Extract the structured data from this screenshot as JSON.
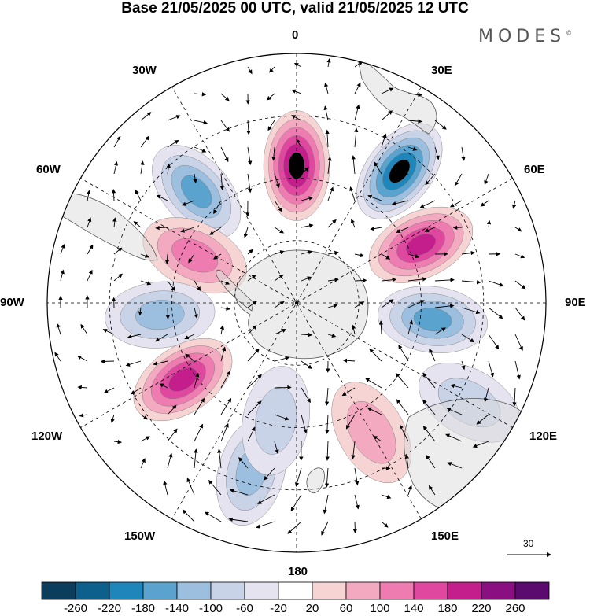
{
  "title": "Base 21/05/2025 00 UTC, valid 21/05/2025 12 UTC",
  "brand": "MODES",
  "brand_mark": "©",
  "longitude_labels": {
    "lon_0": "0",
    "lon_30e": "30E",
    "lon_60e": "60E",
    "lon_90e": "90E",
    "lon_120e": "120E",
    "lon_150e": "150E",
    "lon_180": "180",
    "lon_150w": "150W",
    "lon_120w": "120W",
    "lon_90w": "90W",
    "lon_60w": "60W",
    "lon_30w": "30W"
  },
  "reference_vector": {
    "label": "30"
  },
  "colorbar": {
    "ticks": [
      "-260",
      "-220",
      "-180",
      "-140",
      "-100",
      "-60",
      "-20",
      "20",
      "60",
      "100",
      "140",
      "180",
      "220",
      "260"
    ],
    "colors": [
      "#0b3d5c",
      "#0d5f8c",
      "#1f86bb",
      "#5aa3cf",
      "#9cbfe0",
      "#c9d3e8",
      "#e5e3ef",
      "#ffffff",
      "#f7d4d4",
      "#f3aac0",
      "#ee7cb0",
      "#e0479f",
      "#c41d8c",
      "#8a0f80",
      "#5b0a6e"
    ]
  },
  "anomaly_features": [
    {
      "sign": "positive",
      "lon": 0,
      "colat": 0.55,
      "level": 5
    },
    {
      "sign": "negative",
      "lon": 38,
      "colat": 0.67,
      "level": 5
    },
    {
      "sign": "positive",
      "lon": 65,
      "colat": 0.55,
      "level": 4
    },
    {
      "sign": "negative",
      "lon": 97,
      "colat": 0.55,
      "level": 3
    },
    {
      "sign": "negative",
      "lon": -42,
      "colat": 0.6,
      "level": 3
    },
    {
      "sign": "positive",
      "lon": -65,
      "colat": 0.45,
      "level": 2
    },
    {
      "sign": "negative",
      "lon": -95,
      "colat": 0.55,
      "level": 2
    },
    {
      "sign": "positive",
      "lon": -124,
      "colat": 0.55,
      "level": 4
    },
    {
      "sign": "negative",
      "lon": -165,
      "colat": 0.7,
      "level": 2
    },
    {
      "sign": "negative",
      "lon": -170,
      "colat": 0.48,
      "level": 1
    },
    {
      "sign": "positive",
      "lon": 150,
      "colat": 0.6,
      "level": 1
    },
    {
      "sign": "negative",
      "lon": 120,
      "colat": 0.8,
      "level": 1
    }
  ]
}
